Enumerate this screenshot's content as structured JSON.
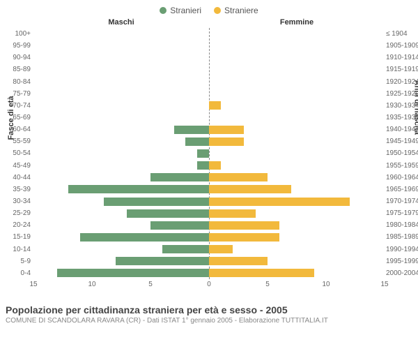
{
  "chart": {
    "type": "population-pyramid",
    "legend": {
      "male": {
        "label": "Stranieri",
        "color": "#6a9e73"
      },
      "female": {
        "label": "Straniere",
        "color": "#f2b93c"
      }
    },
    "column_titles": {
      "left": "Maschi",
      "right": "Femmine"
    },
    "y_axis_left_title": "Fasce di età",
    "y_axis_right_title": "Anni di nascita",
    "x_axis": {
      "max": 15,
      "ticks": [
        15,
        10,
        5,
        0,
        5,
        10,
        15
      ]
    },
    "background_color": "#ffffff",
    "centerline_color": "#888888",
    "label_fontsize": 10,
    "rows": [
      {
        "age": "100+",
        "birth": "≤ 1904",
        "male": 0,
        "female": 0
      },
      {
        "age": "95-99",
        "birth": "1905-1909",
        "male": 0,
        "female": 0
      },
      {
        "age": "90-94",
        "birth": "1910-1914",
        "male": 0,
        "female": 0
      },
      {
        "age": "85-89",
        "birth": "1915-1919",
        "male": 0,
        "female": 0
      },
      {
        "age": "80-84",
        "birth": "1920-1924",
        "male": 0,
        "female": 0
      },
      {
        "age": "75-79",
        "birth": "1925-1929",
        "male": 0,
        "female": 0
      },
      {
        "age": "70-74",
        "birth": "1930-1934",
        "male": 0,
        "female": 1
      },
      {
        "age": "65-69",
        "birth": "1935-1939",
        "male": 0,
        "female": 0
      },
      {
        "age": "60-64",
        "birth": "1940-1944",
        "male": 3,
        "female": 3
      },
      {
        "age": "55-59",
        "birth": "1945-1949",
        "male": 2,
        "female": 3
      },
      {
        "age": "50-54",
        "birth": "1950-1954",
        "male": 1,
        "female": 0
      },
      {
        "age": "45-49",
        "birth": "1955-1959",
        "male": 1,
        "female": 1
      },
      {
        "age": "40-44",
        "birth": "1960-1964",
        "male": 5,
        "female": 5
      },
      {
        "age": "35-39",
        "birth": "1965-1969",
        "male": 12,
        "female": 7
      },
      {
        "age": "30-34",
        "birth": "1970-1974",
        "male": 9,
        "female": 12
      },
      {
        "age": "25-29",
        "birth": "1975-1979",
        "male": 7,
        "female": 4
      },
      {
        "age": "20-24",
        "birth": "1980-1984",
        "male": 5,
        "female": 6
      },
      {
        "age": "15-19",
        "birth": "1985-1989",
        "male": 11,
        "female": 6
      },
      {
        "age": "10-14",
        "birth": "1990-1994",
        "male": 4,
        "female": 2
      },
      {
        "age": "5-9",
        "birth": "1995-1999",
        "male": 8,
        "female": 5
      },
      {
        "age": "0-4",
        "birth": "2000-2004",
        "male": 13,
        "female": 9
      }
    ]
  },
  "footer": {
    "title": "Popolazione per cittadinanza straniera per età e sesso - 2005",
    "subtitle": "COMUNE DI SCANDOLARA RAVARA (CR) - Dati ISTAT 1° gennaio 2005 - Elaborazione TUTTITALIA.IT"
  }
}
